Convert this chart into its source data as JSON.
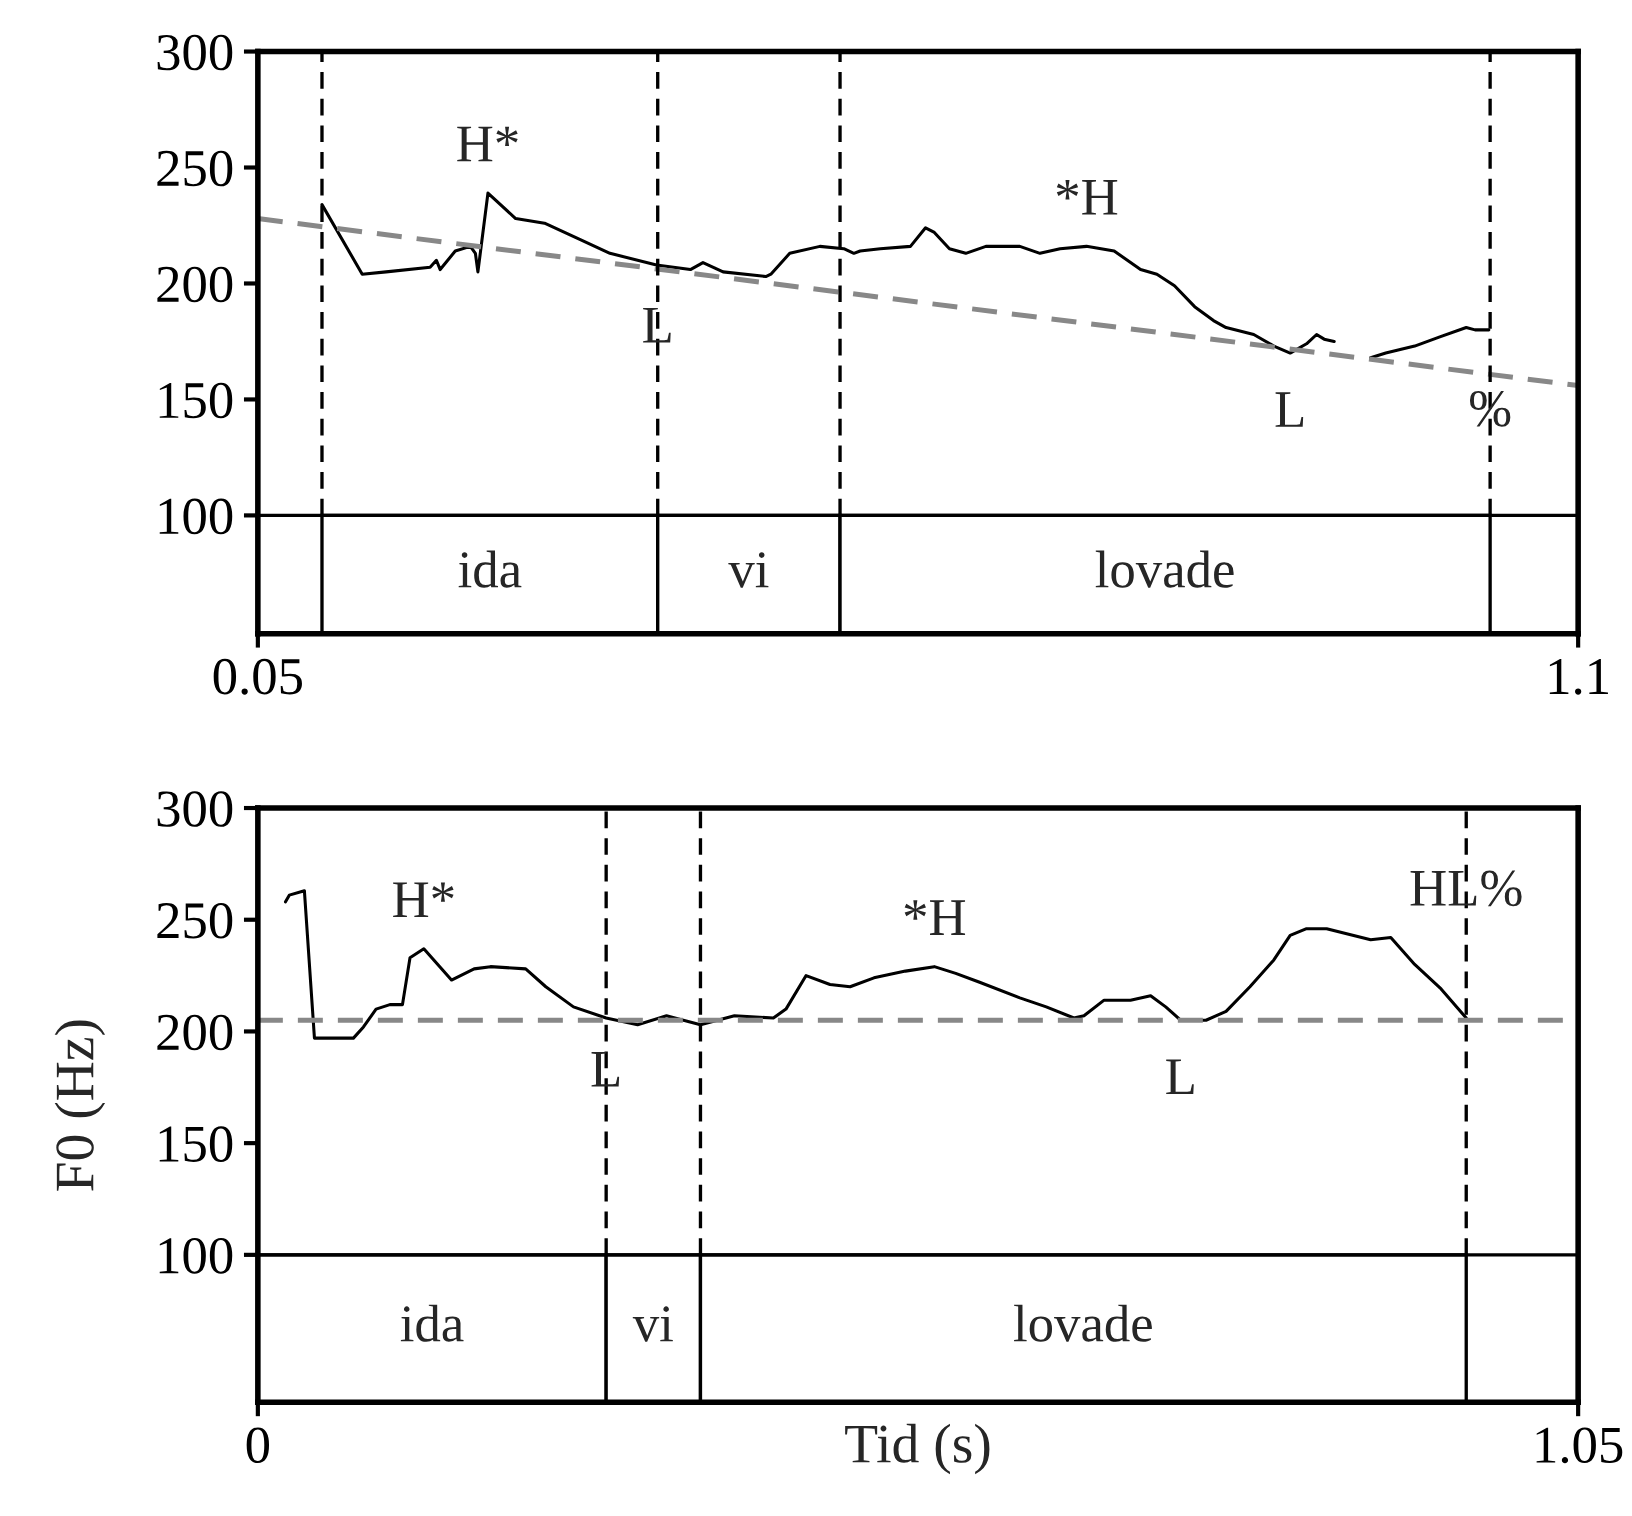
{
  "chart_data": [
    {
      "type": "line",
      "xlim": [
        0.05,
        1.1
      ],
      "xticks": [
        0.05,
        1.1
      ],
      "ylim": [
        49,
        300
      ],
      "yticks": [
        100,
        150,
        200,
        250,
        300
      ],
      "grid": false,
      "legend": false,
      "series": [
        {
          "color": "#000000",
          "line_style": "solid",
          "x": [
            0.101,
            0.133,
            0.152,
            0.187,
            0.192,
            0.195,
            0.207,
            0.219,
            0.223,
            0.225,
            0.233,
            0.255,
            0.278,
            0.306,
            0.33,
            0.367,
            0.394,
            0.404,
            0.42,
            0.454,
            0.458,
            0.473,
            0.497,
            0.516,
            0.524,
            0.529,
            0.545,
            0.569,
            0.581,
            0.588,
            0.6,
            0.613,
            0.629,
            0.656,
            0.672,
            0.688,
            0.709,
            0.731,
            0.752,
            0.765,
            0.779,
            0.795,
            0.81,
            0.82,
            0.842,
            0.858,
            0.871,
            0.884,
            0.892,
            0.898,
            0.906,
            0.92,
            0.935,
            0.947,
            0.97,
            0.99,
            1.011,
            1.018,
            1.029
          ],
          "values": [
            234,
            204,
            205,
            207,
            210,
            206,
            214,
            216,
            213,
            205,
            239,
            228,
            226,
            219,
            213,
            208,
            206,
            209,
            205,
            203,
            204,
            213,
            216,
            215,
            213,
            214,
            215,
            216,
            224,
            222,
            215,
            213,
            216,
            216,
            213,
            215,
            216,
            214,
            206,
            204,
            199,
            190,
            184,
            181,
            178,
            173,
            170,
            174,
            178,
            176,
            175,
            null,
            168,
            170,
            173,
            177,
            181,
            180,
            180
          ]
        },
        {
          "color": "#888888",
          "line_style": "dashed",
          "x": [
            0.05,
            1.1
          ],
          "values": [
            228,
            156
          ]
        }
      ],
      "ref_lines": [
        {
          "axis": "y",
          "value": 100,
          "color": "#000000",
          "line_style": "solid"
        },
        {
          "axis": "x",
          "value": 0.101,
          "color": "#000000",
          "line_style": "dashed"
        },
        {
          "axis": "x",
          "value": 0.368,
          "color": "#000000",
          "line_style": "dashed"
        },
        {
          "axis": "x",
          "value": 0.513,
          "color": "#000000",
          "line_style": "dashed"
        },
        {
          "axis": "x",
          "value": 1.03,
          "color": "#000000",
          "line_style": "dashed"
        }
      ],
      "bands": [
        {
          "axis": "x",
          "from": 0.101,
          "to": 0.368,
          "label": "ida",
          "color": "#ffffff"
        },
        {
          "axis": "x",
          "from": 0.368,
          "to": 0.513,
          "label": "vi",
          "color": "#ffffff"
        },
        {
          "axis": "x",
          "from": 0.513,
          "to": 1.03,
          "label": "lovade",
          "color": "#ffffff"
        }
      ],
      "annotations": [
        {
          "text": "H*",
          "x": 0.233,
          "y": 239
        },
        {
          "text": "L",
          "x": 0.368,
          "y": 180
        },
        {
          "text": "*H",
          "x": 0.709,
          "y": 216
        },
        {
          "text": "L",
          "x": 0.871,
          "y": 170
        },
        {
          "text": "%",
          "x": 1.03,
          "y": 144
        }
      ]
    },
    {
      "type": "line",
      "xlabel": "Tid (s)",
      "ylabel": "F0 (Hz)",
      "xlim": [
        0,
        1.05
      ],
      "xticks": [
        0,
        1.05
      ],
      "ylim": [
        34,
        300
      ],
      "yticks": [
        100,
        150,
        200,
        250,
        300
      ],
      "grid": false,
      "legend": false,
      "series": [
        {
          "color": "#000000",
          "line_style": "solid",
          "x": [
            0.022,
            0.025,
            0.037,
            0.045,
            0.076,
            0.084,
            0.094,
            0.105,
            0.115,
            0.121,
            0.132,
            0.154,
            0.172,
            0.185,
            0.213,
            0.229,
            0.251,
            0.277,
            0.302,
            0.325,
            0.352,
            0.379,
            0.41,
            0.42,
            0.436,
            0.455,
            0.471,
            0.49,
            0.515,
            0.538,
            0.555,
            0.574,
            0.606,
            0.627,
            0.649,
            0.657,
            0.673,
            0.694,
            0.71,
            0.722,
            0.734,
            0.754,
            0.77,
            0.789,
            0.808,
            0.821,
            0.834,
            0.85,
            0.885,
            0.901,
            0.92,
            0.941,
            0.961
          ],
          "values": [
            258,
            261,
            263,
            197,
            197,
            202,
            210,
            212,
            212,
            233,
            237,
            223,
            228,
            229,
            228,
            220,
            211,
            206,
            203,
            207,
            203,
            207,
            206,
            210,
            225,
            221,
            220,
            224,
            227,
            229,
            226,
            222,
            215,
            211,
            206,
            207,
            214,
            214,
            216,
            211,
            205,
            205,
            209,
            220,
            232,
            243,
            246,
            246,
            241,
            242,
            230,
            219,
            206
          ]
        }
      ],
      "ref_lines": [
        {
          "axis": "y",
          "value": 100,
          "color": "#000000",
          "line_style": "solid"
        },
        {
          "axis": "y",
          "value": 205,
          "color": "#888888",
          "line_style": "dashed"
        },
        {
          "axis": "x",
          "value": 0.277,
          "color": "#000000",
          "line_style": "dashed"
        },
        {
          "axis": "x",
          "value": 0.352,
          "color": "#000000",
          "line_style": "dashed"
        },
        {
          "axis": "x",
          "value": 0.961,
          "color": "#000000",
          "line_style": "dashed"
        }
      ],
      "bands": [
        {
          "axis": "x",
          "from": 0,
          "to": 0.277,
          "label": "ida",
          "color": "#ffffff"
        },
        {
          "axis": "x",
          "from": 0.277,
          "to": 0.352,
          "label": "vi",
          "color": "#ffffff"
        },
        {
          "axis": "x",
          "from": 0.352,
          "to": 0.961,
          "label": "lovade",
          "color": "#ffffff"
        }
      ],
      "annotations": [
        {
          "text": "H*",
          "x": 0.132,
          "y": 237
        },
        {
          "text": "L",
          "x": 0.277,
          "y": 181
        },
        {
          "text": "*H",
          "x": 0.538,
          "y": 229
        },
        {
          "text": "L",
          "x": 0.734,
          "y": 205
        },
        {
          "text": "HL%",
          "x": 0.961,
          "y": 262
        }
      ]
    }
  ]
}
